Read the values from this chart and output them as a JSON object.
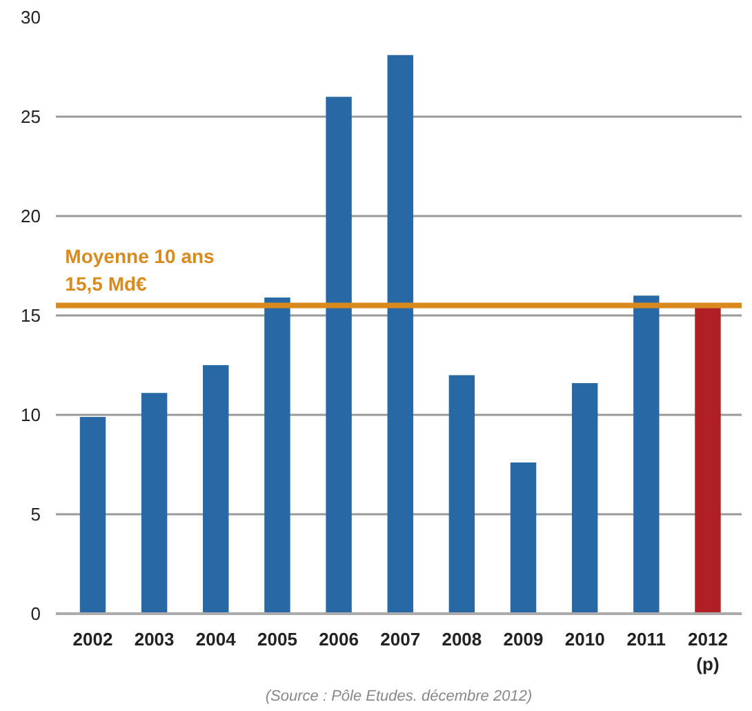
{
  "chart_data": {
    "type": "bar",
    "categories": [
      "2002",
      "2003",
      "2004",
      "2005",
      "2006",
      "2007",
      "2008",
      "2009",
      "2010",
      "2011",
      "2012\n(p)"
    ],
    "values": [
      9.9,
      11.1,
      12.5,
      15.9,
      26.0,
      28.1,
      12.0,
      7.6,
      11.6,
      16.0,
      15.4
    ],
    "colors": [
      "#2868a4",
      "#2868a4",
      "#2868a4",
      "#2868a4",
      "#2868a4",
      "#2868a4",
      "#2868a4",
      "#2868a4",
      "#2868a4",
      "#2868a4",
      "#b01f26"
    ],
    "ylim": [
      0,
      30
    ],
    "yticks": [
      0,
      5,
      10,
      15,
      20,
      25,
      30
    ],
    "grid": "y",
    "ref_lines": [
      {
        "axis": "y",
        "value": 15.5,
        "label": "Moyenne 10 ans\n15,5 Md€",
        "color": "#d98a1e"
      }
    ],
    "annotations": [
      "(Source : Pôle Etudes. décembre 2012)"
    ]
  }
}
